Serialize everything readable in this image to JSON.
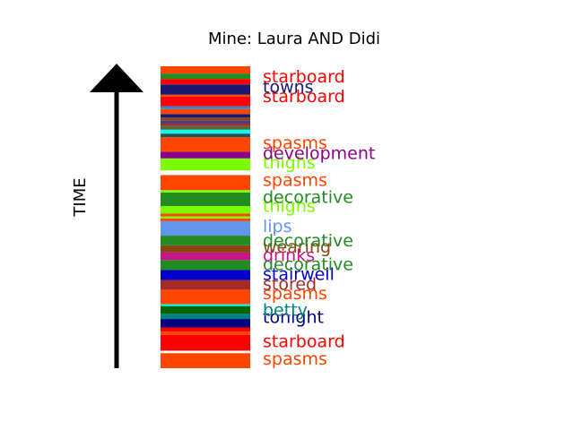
{
  "chart_data": {
    "type": "bar",
    "title": "Mine: Laura AND Didi",
    "ylabel": "TIME",
    "y_direction": "bottom-to-top",
    "ylim": [
      0,
      100
    ],
    "segments": [
      {
        "start": 0.0,
        "end": 5.0,
        "color": "#FF4500",
        "label": "spasms"
      },
      {
        "start": 5.0,
        "end": 5.8,
        "color": "#FFFFFF"
      },
      {
        "start": 5.8,
        "end": 11.0,
        "color": "#FF0000",
        "label": "starboard"
      },
      {
        "start": 11.0,
        "end": 12.1,
        "color": "#FF4500"
      },
      {
        "start": 12.1,
        "end": 13.5,
        "color": "#FF0000"
      },
      {
        "start": 13.5,
        "end": 16.3,
        "color": "#000080",
        "label": "tonight"
      },
      {
        "start": 16.3,
        "end": 18.0,
        "color": "#008080",
        "label": "betty"
      },
      {
        "start": 18.0,
        "end": 20.6,
        "color": "#006400"
      },
      {
        "start": 20.6,
        "end": 21.2,
        "color": "#00FFFF"
      },
      {
        "start": 21.2,
        "end": 26.0,
        "color": "#FF4500",
        "label": "spasms"
      },
      {
        "start": 26.0,
        "end": 29.2,
        "color": "#A52A2A",
        "label": "stored"
      },
      {
        "start": 29.2,
        "end": 32.5,
        "color": "#0000CD",
        "label": "stairwell"
      },
      {
        "start": 32.5,
        "end": 35.8,
        "color": "#228B22",
        "label": "decorative"
      },
      {
        "start": 35.8,
        "end": 38.3,
        "color": "#C71585",
        "label": "drinks"
      },
      {
        "start": 38.3,
        "end": 40.7,
        "color": "#8B4513",
        "label": "wearing"
      },
      {
        "start": 40.7,
        "end": 43.9,
        "color": "#228B22",
        "label": "decorative"
      },
      {
        "start": 43.9,
        "end": 48.7,
        "color": "#6495ED",
        "label": "lips"
      },
      {
        "start": 48.7,
        "end": 49.6,
        "color": "#FF4500"
      },
      {
        "start": 49.6,
        "end": 50.3,
        "color": "#7CFC00"
      },
      {
        "start": 50.3,
        "end": 51.2,
        "color": "#FF4500"
      },
      {
        "start": 51.2,
        "end": 53.7,
        "color": "#7CFC00",
        "label": "thighs"
      },
      {
        "start": 53.7,
        "end": 58.2,
        "color": "#228B22",
        "label": "decorative"
      },
      {
        "start": 58.2,
        "end": 59.0,
        "color": "#7CFC00"
      },
      {
        "start": 59.0,
        "end": 64.0,
        "color": "#FF4500",
        "label": "spasms"
      },
      {
        "start": 64.0,
        "end": 65.5,
        "color": "#FFFFFF"
      },
      {
        "start": 65.5,
        "end": 69.5,
        "color": "#7CFC00",
        "label": "thighs"
      },
      {
        "start": 69.5,
        "end": 71.7,
        "color": "#8B008B",
        "label": "development"
      },
      {
        "start": 71.7,
        "end": 76.5,
        "color": "#FF4500",
        "label": "spasms"
      },
      {
        "start": 76.5,
        "end": 77.7,
        "color": "#2F4F4F"
      },
      {
        "start": 77.7,
        "end": 79.0,
        "color": "#00FFFF"
      },
      {
        "start": 79.0,
        "end": 80.2,
        "color": "#556B2F"
      },
      {
        "start": 80.2,
        "end": 81.0,
        "color": "#A52A2A"
      },
      {
        "start": 81.0,
        "end": 82.0,
        "color": "#483D8B"
      },
      {
        "start": 82.0,
        "end": 83.0,
        "color": "#8B4513"
      },
      {
        "start": 83.0,
        "end": 84.2,
        "color": "#191970"
      },
      {
        "start": 84.2,
        "end": 85.8,
        "color": "#FF4500"
      },
      {
        "start": 85.8,
        "end": 86.8,
        "color": "#4682B4"
      },
      {
        "start": 86.8,
        "end": 90.0,
        "color": "#FF0000",
        "label": "starboard"
      },
      {
        "start": 90.0,
        "end": 90.6,
        "color": "#FF4500"
      },
      {
        "start": 90.6,
        "end": 94.0,
        "color": "#191970",
        "label": "towns"
      },
      {
        "start": 94.0,
        "end": 95.8,
        "color": "#FF0000",
        "label": "starboard"
      },
      {
        "start": 95.8,
        "end": 97.6,
        "color": "#228B22"
      },
      {
        "start": 97.6,
        "end": 100.0,
        "color": "#FF4500"
      }
    ],
    "labels": [
      {
        "text": "spasms",
        "y": 3.0,
        "color": "#FF4500"
      },
      {
        "text": "starboard",
        "y": 8.8,
        "color": "#FF0000"
      },
      {
        "text": "tonight",
        "y": 16.7,
        "color": "#000080"
      },
      {
        "text": "betty",
        "y": 19.1,
        "color": "#008080"
      },
      {
        "text": "spasms",
        "y": 24.7,
        "color": "#FF4500"
      },
      {
        "text": "stored",
        "y": 27.7,
        "color": "#A52A2A"
      },
      {
        "text": "stairwell",
        "y": 31.0,
        "color": "#0000CD"
      },
      {
        "text": "decorative",
        "y": 34.3,
        "color": "#228B22"
      },
      {
        "text": "drinks",
        "y": 37.3,
        "color": "#C71585"
      },
      {
        "text": "wearing",
        "y": 40.1,
        "color": "#8B4513"
      },
      {
        "text": "decorative",
        "y": 42.1,
        "color": "#228B22"
      },
      {
        "text": "lips",
        "y": 46.9,
        "color": "#6495ED"
      },
      {
        "text": "thighs",
        "y": 53.6,
        "color": "#7CFC00"
      },
      {
        "text": "decorative",
        "y": 56.5,
        "color": "#228B22"
      },
      {
        "text": "spasms",
        "y": 62.2,
        "color": "#FF4500"
      },
      {
        "text": "thighs",
        "y": 68.0,
        "color": "#7CFC00"
      },
      {
        "text": "development",
        "y": 71.1,
        "color": "#8B008B"
      },
      {
        "text": "spasms",
        "y": 74.5,
        "color": "#FF4500"
      },
      {
        "text": "starboard",
        "y": 89.9,
        "color": "#FF0000"
      },
      {
        "text": "towns",
        "y": 93.1,
        "color": "#191970"
      },
      {
        "text": "starboard",
        "y": 96.4,
        "color": "#FF0000"
      }
    ]
  }
}
